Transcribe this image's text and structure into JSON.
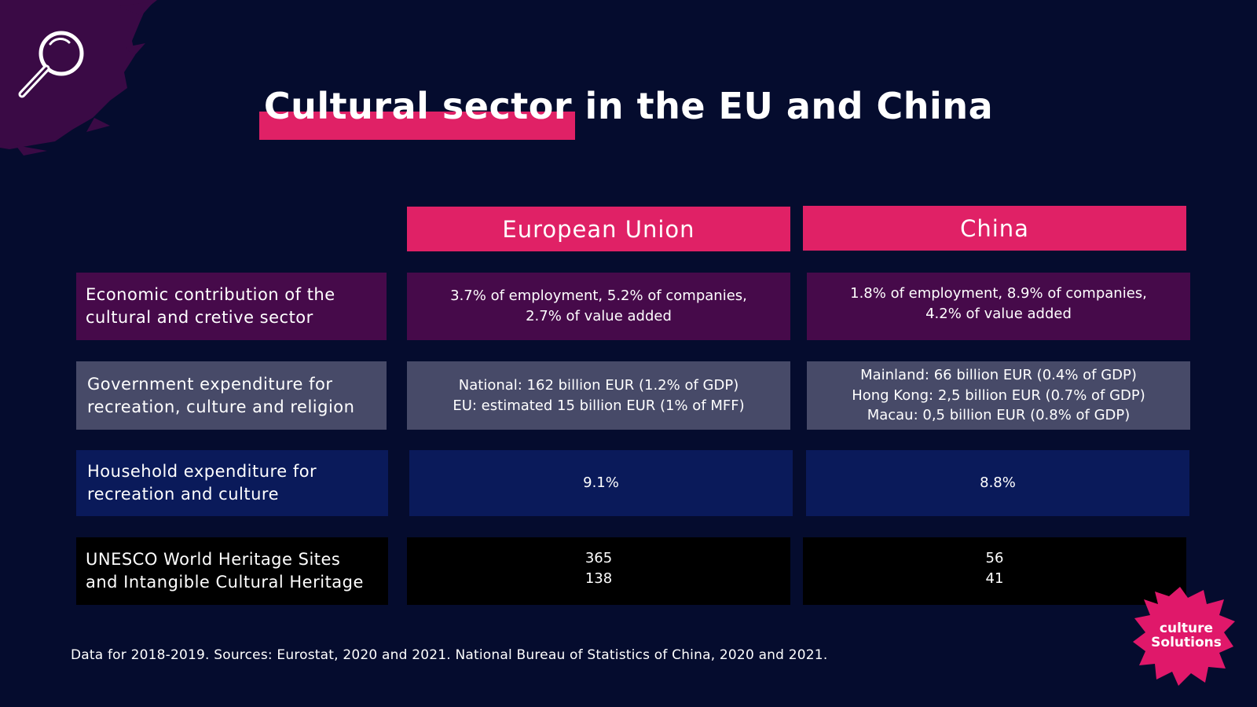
{
  "title": {
    "highlighted": "Cultural sector",
    "rest": " in the EU and China"
  },
  "columns": {
    "eu": "European Union",
    "china": "China"
  },
  "rows": [
    {
      "label": [
        "Economic contribution of the",
        "cultural and cretive sector"
      ],
      "eu": [
        "3.7% of employment, 5.2% of companies,",
        "2.7% of value added"
      ],
      "china": [
        "1.8% of employment, 8.9% of companies,",
        "4.2% of value added"
      ]
    },
    {
      "label": [
        "Government expenditure for",
        "recreation, culture and religion"
      ],
      "eu": [
        "National: 162 billion EUR (1.2% of GDP)",
        "EU: estimated 15 billion EUR (1% of MFF)"
      ],
      "china": [
        "Mainland: 66 billion EUR (0.4% of GDP)",
        "Hong Kong: 2,5 billion EUR (0.7% of GDP)",
        "Macau: 0,5 billion EUR (0.8% of GDP)"
      ]
    },
    {
      "label": [
        "Household expenditure for",
        "recreation and culture"
      ],
      "eu": [
        "9.1%"
      ],
      "china": [
        "8.8%"
      ]
    },
    {
      "label": [
        "UNESCO World Heritage Sites",
        "and Intangible Cultural Heritage"
      ],
      "eu": [
        "365",
        "138"
      ],
      "china": [
        "56",
        "41"
      ]
    }
  ],
  "footer": "Data for 2018-2019. Sources: Eurostat, 2020 and 2021. National Bureau of Statistics of China, 2020 and 2021.",
  "logo": {
    "line1": "culture",
    "line2": "Solutions"
  },
  "icons": {
    "search": "magnifier-icon"
  },
  "colors": {
    "background": "#050c2e",
    "accent": "#e02166",
    "row1": "#460a4a",
    "row2": "#474a68",
    "row3": "#0a1a5a",
    "row4": "#000000"
  }
}
